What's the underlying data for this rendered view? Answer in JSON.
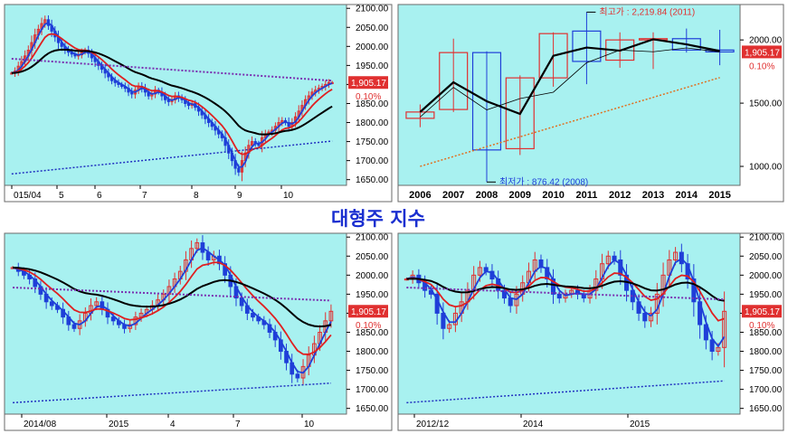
{
  "title": "대형주 지수",
  "colors": {
    "plot_bg": "#a8f1f0",
    "axis_bg": "#ffffff",
    "up": "#e03030",
    "down": "#1f3fd8",
    "price_flag": "#e03030",
    "title": "#1a2fd0"
  },
  "chart_data": [
    {
      "type": "candlestick",
      "panel": "top-left",
      "period": "daily",
      "x_ticks": [
        "015/04",
        "5",
        "6",
        "7",
        "8",
        "9",
        "10"
      ],
      "y_ticks": [
        "2100.00",
        "2050.00",
        "2000.00",
        "1950.00",
        "1900.00",
        "1850.00",
        "1800.00",
        "1750.00",
        "1700.00",
        "1650.00"
      ],
      "ylim": [
        1635,
        2110
      ],
      "last_price": "1,905.17",
      "change": "0.10%",
      "close_series": [
        1930,
        1935,
        1948,
        1960,
        1975,
        1990,
        2010,
        2030,
        2045,
        2060,
        2070,
        2055,
        2040,
        2025,
        2010,
        2000,
        1990,
        1985,
        1980,
        1975,
        1978,
        1985,
        1990,
        1982,
        1970,
        1960,
        1950,
        1940,
        1930,
        1920,
        1910,
        1905,
        1900,
        1895,
        1890,
        1880,
        1875,
        1885,
        1895,
        1890,
        1880,
        1870,
        1875,
        1885,
        1880,
        1870,
        1860,
        1855,
        1860,
        1870,
        1865,
        1860,
        1850,
        1845,
        1850,
        1840,
        1830,
        1820,
        1810,
        1800,
        1790,
        1780,
        1770,
        1760,
        1740,
        1720,
        1700,
        1680,
        1670,
        1700,
        1720,
        1740,
        1750,
        1745,
        1740,
        1760,
        1770,
        1775,
        1780,
        1790,
        1800,
        1805,
        1800,
        1790,
        1800,
        1815,
        1830,
        1845,
        1860,
        1870,
        1880,
        1885,
        1890,
        1895,
        1900,
        1905,
        1905
      ]
    },
    {
      "type": "candlestick",
      "panel": "top-right",
      "period": "yearly",
      "categories": [
        "2006",
        "2007",
        "2008",
        "2009",
        "2010",
        "2011",
        "2012",
        "2013",
        "2014",
        "2015"
      ],
      "y_ticks": [
        "2000.00",
        "1500.00",
        "1000.00"
      ],
      "ylim": [
        850,
        2280
      ],
      "ohlc": [
        [
          1380,
          1490,
          1310,
          1430
        ],
        [
          1450,
          2010,
          1430,
          1900
        ],
        [
          1900,
          1910,
          876.42,
          1130
        ],
        [
          1140,
          1720,
          1090,
          1700
        ],
        [
          1700,
          2060,
          1630,
          2050
        ],
        [
          2070,
          2219.84,
          1650,
          1830
        ],
        [
          1840,
          2060,
          1780,
          2000
        ],
        [
          2000,
          2060,
          1770,
          2010
        ],
        [
          2010,
          2090,
          1900,
          1920
        ],
        [
          1920,
          2080,
          1800,
          1905.17
        ]
      ],
      "last_price": "1,905.17",
      "change": "0.10%",
      "high_label": "최고가 : 2,219.84 (2011)",
      "low_label": "최저가 : 876.42 (2008)"
    },
    {
      "type": "candlestick",
      "panel": "bottom-left",
      "period": "weekly",
      "x_ticks": [
        "2014/08",
        "2015",
        "4",
        "7",
        "10"
      ],
      "y_ticks": [
        "2100.00",
        "2050.00",
        "2000.00",
        "1950.00",
        "1900.00",
        "1850.00",
        "1800.00",
        "1750.00",
        "1700.00",
        "1650.00"
      ],
      "ylim": [
        1635,
        2110
      ],
      "last_price": "1,905.17",
      "change": "0.10%",
      "close_series": [
        2020,
        2010,
        2000,
        1990,
        1970,
        1950,
        1930,
        1920,
        1910,
        1890,
        1870,
        1860,
        1880,
        1900,
        1920,
        1930,
        1910,
        1890,
        1880,
        1870,
        1860,
        1870,
        1890,
        1900,
        1910,
        1920,
        1935,
        1950,
        1970,
        1990,
        2010,
        2040,
        2070,
        2085,
        2060,
        2040,
        2050,
        2030,
        2000,
        1970,
        1940,
        1920,
        1900,
        1890,
        1880,
        1870,
        1850,
        1830,
        1800,
        1770,
        1740,
        1730,
        1760,
        1790,
        1820,
        1850,
        1880,
        1905
      ]
    },
    {
      "type": "candlestick",
      "panel": "bottom-right",
      "period": "monthly-window",
      "x_ticks": [
        "2012/12",
        "2014",
        "2015"
      ],
      "y_ticks": [
        "2100.00",
        "2050.00",
        "2000.00",
        "1950.00",
        "1900.00",
        "1850.00",
        "1800.00",
        "1750.00",
        "1700.00",
        "1650.00"
      ],
      "ylim": [
        1635,
        2110
      ],
      "last_price": "1,905.17",
      "change": "0.10%",
      "close_series": [
        1990,
        2000,
        1980,
        1960,
        1950,
        1900,
        1860,
        1870,
        1900,
        1930,
        1960,
        2000,
        2020,
        2010,
        1990,
        1960,
        1940,
        1920,
        1950,
        1980,
        2010,
        2040,
        2020,
        1990,
        1950,
        1940,
        1950,
        1960,
        1950,
        1940,
        1960,
        1990,
        2030,
        2050,
        2040,
        2000,
        1960,
        1930,
        1900,
        1880,
        1900,
        1950,
        2000,
        2040,
        2060,
        2030,
        1990,
        1930,
        1870,
        1830,
        1800,
        1810,
        1905
      ]
    }
  ]
}
